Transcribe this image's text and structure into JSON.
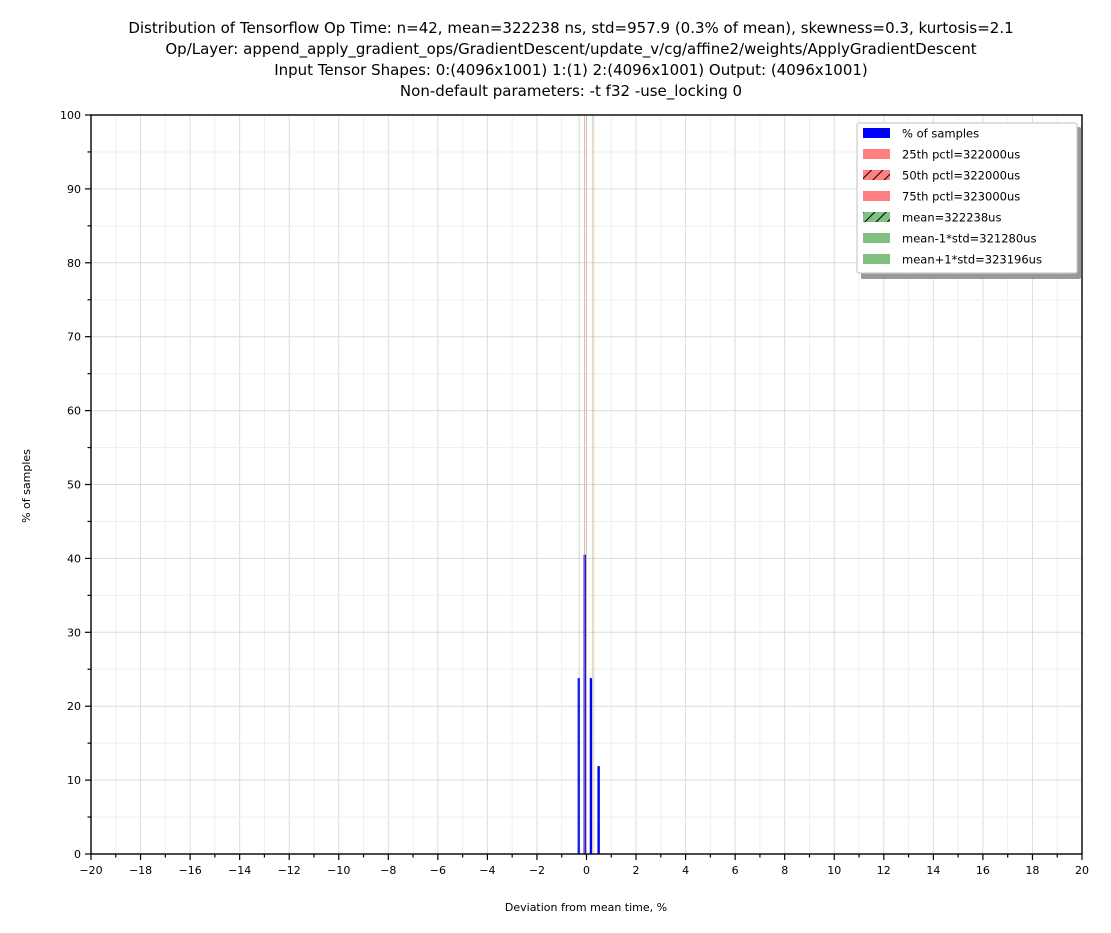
{
  "chart_data": {
    "type": "bar",
    "title_lines": [
      "Distribution of Tensorflow Op Time: n=42, mean=322238 ns, std=957.9 (0.3% of mean), skewness=0.3, kurtosis=2.1",
      "Op/Layer: append_apply_gradient_ops/GradientDescent/update_v/cg/affine2/weights/ApplyGradientDescent",
      "Input Tensor Shapes:  0:(4096x1001) 1:(1) 2:(4096x1001) Output: (4096x1001)",
      "Non-default parameters: -t  f32 -use_locking 0"
    ],
    "xlabel": "Deviation from mean time, %",
    "ylabel": "% of samples",
    "xlim": [
      -20,
      20
    ],
    "ylim": [
      0,
      100
    ],
    "x_major_ticks": [
      -20,
      -18,
      -16,
      -14,
      -12,
      -10,
      -8,
      -6,
      -4,
      -2,
      0,
      2,
      4,
      6,
      8,
      10,
      12,
      14,
      16,
      18,
      20
    ],
    "x_tick_labels": [
      "−20",
      "−18",
      "−16",
      "−14",
      "−12",
      "−10",
      "−8",
      "−6",
      "−4",
      "−2",
      "0",
      "2",
      "4",
      "6",
      "8",
      "10",
      "12",
      "14",
      "16",
      "18",
      "20"
    ],
    "y_major_ticks": [
      0,
      10,
      20,
      30,
      40,
      50,
      60,
      70,
      80,
      90,
      100
    ],
    "y_tick_labels": [
      "0",
      "10",
      "20",
      "30",
      "40",
      "50",
      "60",
      "70",
      "80",
      "90",
      "100"
    ],
    "grid": true,
    "legend_position": "top-right",
    "series": [
      {
        "name": "% of samples",
        "color": "#0000ff",
        "x": [
          -0.31,
          -0.07,
          0.18,
          0.49
        ],
        "values": [
          23.8,
          40.5,
          23.8,
          11.9
        ]
      }
    ],
    "vertical_lines": [
      {
        "name": "25th pctl=322000us",
        "x": -0.074,
        "color": "#ff8080",
        "hatch": false
      },
      {
        "name": "50th pctl=322000us",
        "x": -0.074,
        "color": "#ff8080",
        "hatch": true
      },
      {
        "name": "75th pctl=323000us",
        "x": 0.236,
        "color": "#ff8080",
        "hatch": false
      },
      {
        "name": "mean=322238us",
        "x": 0.0,
        "color": "#80c080",
        "hatch": true
      },
      {
        "name": "mean-1*std=321280us",
        "x": -0.297,
        "color": "#80c080",
        "hatch": false
      },
      {
        "name": "mean+1*std=323196us",
        "x": 0.297,
        "color": "#80c080",
        "hatch": false
      }
    ]
  }
}
